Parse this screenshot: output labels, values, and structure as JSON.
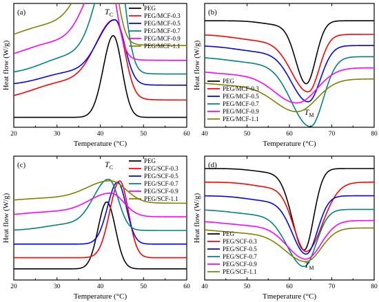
{
  "chart_data": [
    {
      "type": "line",
      "panel_label": "(a)",
      "xlabel": "Temperature (°C)",
      "ylabel": "Heat flow (W/g)",
      "xlim": [
        20,
        60
      ],
      "xticks": [
        20,
        30,
        40,
        50,
        60
      ],
      "legend_position": "top-right",
      "annotation": {
        "main": "T",
        "sub": "C",
        "x": 42
      },
      "series": [
        {
          "name": "PEG",
          "color": "#000000",
          "base": 0.08,
          "peak": 43,
          "amp": 0.66,
          "wl": 2.3,
          "wr": 2.0,
          "shoulder": 0
        },
        {
          "name": "PEG/MCF-0.3",
          "color": "#ff0000",
          "base": 0.22,
          "peak": 43.5,
          "amp": 0.61,
          "wl": 4.5,
          "wr": 2.2,
          "shoulder": 0.14
        },
        {
          "name": "PEG/MCF-0.5",
          "color": "#0000ff",
          "base": 0.34,
          "peak": 43.5,
          "amp": 0.5,
          "wl": 4.0,
          "wr": 2.2,
          "shoulder": 0.1
        },
        {
          "name": "PEG/MCF-0.7",
          "color": "#008080",
          "base": 0.43,
          "peak": 43.5,
          "amp": 0.98,
          "wl": 4.0,
          "wr": 2.1,
          "shoulder": 0.14
        },
        {
          "name": "PEG/MCF-0.9",
          "color": "#ff00ff",
          "base": 0.54,
          "peak": 41.5,
          "amp": 0.72,
          "wl": 4.5,
          "wr": 2.1,
          "shoulder": 0.14
        },
        {
          "name": "PEG/MCF-1.1",
          "color": "#808000",
          "base": 0.66,
          "peak": 41.5,
          "amp": 0.79,
          "wl": 5.0,
          "wr": 2.1,
          "shoulder": 0.16
        }
      ]
    },
    {
      "type": "line",
      "panel_label": "(b)",
      "xlabel": "Temperature (°C)",
      "ylabel": "Heat flow (W/g)",
      "xlim": [
        40,
        80
      ],
      "xticks": [
        40,
        50,
        60,
        70,
        80
      ],
      "legend_position": "bottom-left",
      "annotation": {
        "main": "T",
        "sub": "M",
        "x": 64.5
      },
      "series": [
        {
          "name": "PEG",
          "color": "#000000",
          "base": 0.86,
          "peak": 64.0,
          "amp": 0.5,
          "wl": 2.5,
          "wr": 2.2,
          "shoulder": 0.03
        },
        {
          "name": "PEG/MCF-0.3",
          "color": "#ff0000",
          "base": 0.75,
          "peak": 64.5,
          "amp": 0.45,
          "wl": 4.0,
          "wr": 2.5,
          "shoulder": 0.05
        },
        {
          "name": "PEG/MCF-0.5",
          "color": "#0000ff",
          "base": 0.66,
          "peak": 64.5,
          "amp": 0.44,
          "wl": 4.0,
          "wr": 2.8,
          "shoulder": 0.05
        },
        {
          "name": "PEG/MCF-0.7",
          "color": "#008080",
          "base": 0.57,
          "peak": 65.0,
          "amp": 0.55,
          "wl": 4.5,
          "wr": 3.0,
          "shoulder": 0.05
        },
        {
          "name": "PEG/MCF-0.9",
          "color": "#ff00ff",
          "base": 0.48,
          "peak": 62.0,
          "amp": 0.27,
          "wl": 5.5,
          "wr": 4.5,
          "shoulder": 0.05
        },
        {
          "name": "PEG/MCF-1.1",
          "color": "#808000",
          "base": 0.39,
          "peak": 62.0,
          "amp": 0.25,
          "wl": 5.5,
          "wr": 4.5,
          "shoulder": 0.05
        }
      ]
    },
    {
      "type": "line",
      "panel_label": "(c)",
      "xlabel": "Temperature (°C)",
      "ylabel": "Heat flow (W/g)",
      "xlim": [
        20,
        60
      ],
      "xticks": [
        20,
        30,
        40,
        50,
        60
      ],
      "legend_position": "top-right",
      "annotation": {
        "main": "T",
        "sub": "C",
        "x": 42
      },
      "series": [
        {
          "name": "PEG",
          "color": "#000000",
          "base": 0.09,
          "peak": 41.5,
          "amp": 0.54,
          "wl": 2.0,
          "wr": 2.0,
          "shoulder": 0
        },
        {
          "name": "PEG/SCF-0.3",
          "color": "#ff0000",
          "base": 0.18,
          "peak": 44.5,
          "amp": 0.62,
          "wl": 2.3,
          "wr": 2.0,
          "shoulder": 0
        },
        {
          "name": "PEG/SCF-0.5",
          "color": "#0000ff",
          "base": 0.29,
          "peak": 44.0,
          "amp": 0.5,
          "wl": 2.3,
          "wr": 2.0,
          "shoulder": 0
        },
        {
          "name": "PEG/SCF-0.7",
          "color": "#008080",
          "base": 0.4,
          "peak": 42.0,
          "amp": 0.4,
          "wl": 3.5,
          "wr": 2.2,
          "shoulder": 0.05
        },
        {
          "name": "PEG/SCF-0.9",
          "color": "#ff00ff",
          "base": 0.51,
          "peak": 42.5,
          "amp": 0.18,
          "wl": 5.0,
          "wr": 3.0,
          "shoulder": 0.04
        },
        {
          "name": "PEG/SCF-1.1",
          "color": "#808000",
          "base": 0.62,
          "peak": 42.5,
          "amp": 0.17,
          "wl": 5.5,
          "wr": 3.5,
          "shoulder": 0.04
        }
      ]
    },
    {
      "type": "line",
      "panel_label": "(d)",
      "xlabel": "Tmeperature (°C)",
      "ylabel": "Heat flow (W/g)",
      "xlim": [
        40,
        80
      ],
      "xticks": [
        40,
        50,
        60,
        70,
        80
      ],
      "legend_position": "bottom-left",
      "annotation": {
        "main": "T",
        "sub": "M",
        "x": 64.5
      },
      "series": [
        {
          "name": "PEG",
          "color": "#000000",
          "base": 0.9,
          "peak": 63.5,
          "amp": 0.65,
          "wl": 2.8,
          "wr": 2.2,
          "shoulder": 0.03
        },
        {
          "name": "PEG/SCF-0.3",
          "color": "#ff0000",
          "base": 0.79,
          "peak": 64.0,
          "amp": 0.55,
          "wl": 3.0,
          "wr": 3.8,
          "shoulder": 0.04
        },
        {
          "name": "PEG/SCF-0.5",
          "color": "#0000ff",
          "base": 0.68,
          "peak": 64.0,
          "amp": 0.46,
          "wl": 3.3,
          "wr": 2.6,
          "shoulder": 0.04
        },
        {
          "name": "PEG/SCF-0.7",
          "color": "#008080",
          "base": 0.57,
          "peak": 63.5,
          "amp": 0.45,
          "wl": 4.0,
          "wr": 2.8,
          "shoulder": 0.04
        },
        {
          "name": "PEG/SCF-0.9",
          "color": "#ff00ff",
          "base": 0.48,
          "peak": 64.0,
          "amp": 0.3,
          "wl": 4.5,
          "wr": 3.5,
          "shoulder": 0.04
        },
        {
          "name": "PEG/SCF-1.1",
          "color": "#808000",
          "base": 0.42,
          "peak": 64.0,
          "amp": 0.26,
          "wl": 5.0,
          "wr": 3.5,
          "shoulder": 0.04
        }
      ]
    }
  ]
}
